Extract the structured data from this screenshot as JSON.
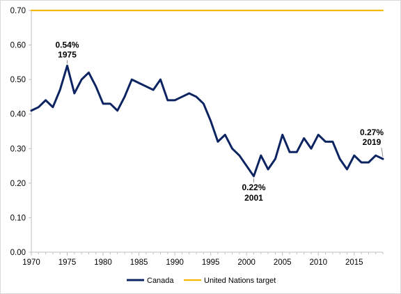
{
  "chart_data": {
    "type": "line",
    "title": "",
    "xlabel": "",
    "ylabel": "",
    "xlim": [
      1970,
      2019
    ],
    "ylim": [
      0,
      0.7
    ],
    "grid": false,
    "legend_position": "bottom",
    "x_ticks": [
      1970,
      1975,
      1980,
      1985,
      1990,
      1995,
      2000,
      2005,
      2010,
      2015
    ],
    "y_ticks": [
      "0.00",
      "0.10",
      "0.20",
      "0.30",
      "0.40",
      "0.50",
      "0.60",
      "0.70"
    ],
    "x": [
      1970,
      1971,
      1972,
      1973,
      1974,
      1975,
      1976,
      1977,
      1978,
      1979,
      1980,
      1981,
      1982,
      1983,
      1984,
      1985,
      1986,
      1987,
      1988,
      1989,
      1990,
      1991,
      1992,
      1993,
      1994,
      1995,
      1996,
      1997,
      1998,
      1999,
      2000,
      2001,
      2002,
      2003,
      2004,
      2005,
      2006,
      2007,
      2008,
      2009,
      2010,
      2011,
      2012,
      2013,
      2014,
      2015,
      2016,
      2017,
      2018,
      2019
    ],
    "series": [
      {
        "name": "Canada",
        "color": "#0c2461",
        "values": [
          0.41,
          0.42,
          0.44,
          0.42,
          0.47,
          0.54,
          0.46,
          0.5,
          0.52,
          0.48,
          0.43,
          0.43,
          0.41,
          0.45,
          0.5,
          0.49,
          0.48,
          0.47,
          0.5,
          0.44,
          0.44,
          0.45,
          0.46,
          0.45,
          0.43,
          0.38,
          0.32,
          0.34,
          0.3,
          0.28,
          0.25,
          0.22,
          0.28,
          0.24,
          0.27,
          0.34,
          0.29,
          0.29,
          0.33,
          0.3,
          0.34,
          0.32,
          0.32,
          0.27,
          0.24,
          0.28,
          0.26,
          0.26,
          0.28,
          0.27
        ]
      },
      {
        "name": "United Nations target",
        "color": "#f5b700",
        "values": [
          0.7,
          0.7,
          0.7,
          0.7,
          0.7,
          0.7,
          0.7,
          0.7,
          0.7,
          0.7,
          0.7,
          0.7,
          0.7,
          0.7,
          0.7,
          0.7,
          0.7,
          0.7,
          0.7,
          0.7,
          0.7,
          0.7,
          0.7,
          0.7,
          0.7,
          0.7,
          0.7,
          0.7,
          0.7,
          0.7,
          0.7,
          0.7,
          0.7,
          0.7,
          0.7,
          0.7,
          0.7,
          0.7,
          0.7,
          0.7,
          0.7,
          0.7,
          0.7,
          0.7,
          0.7,
          0.7,
          0.7,
          0.7,
          0.7,
          0.7
        ]
      }
    ],
    "annotations": [
      {
        "x": 1975,
        "y": 0.54,
        "line1": "0.54%",
        "line2": "1975",
        "placement": "above"
      },
      {
        "x": 2001,
        "y": 0.22,
        "line1": "0.22%",
        "line2": "2001",
        "placement": "below"
      },
      {
        "x": 2019,
        "y": 0.27,
        "line1": "0.27%",
        "line2": "2019",
        "placement": "above-left"
      }
    ]
  }
}
